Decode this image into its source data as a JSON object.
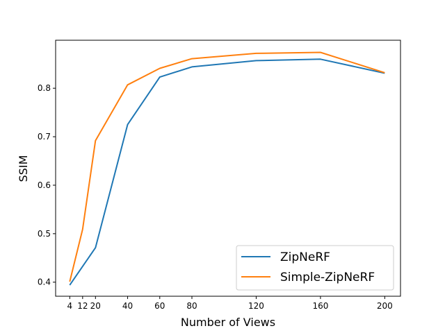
{
  "chart_data": {
    "type": "line",
    "title": "",
    "xlabel": "Number of Views",
    "ylabel": "SSIM",
    "x": [
      4,
      12,
      20,
      40,
      60,
      80,
      120,
      160,
      200
    ],
    "xticks": [
      "4",
      "12",
      "20",
      "40",
      "60",
      "80",
      "120",
      "160",
      "200"
    ],
    "yticks": [
      "0.4",
      "0.5",
      "0.6",
      "0.7",
      "0.8"
    ],
    "xlim": [
      -4.8,
      209.8
    ],
    "ylim": [
      0.371,
      0.899
    ],
    "grid": false,
    "legend_position": "lower-right",
    "series": [
      {
        "name": "ZipNeRF",
        "color": "#1f77b4",
        "values": [
          0.394,
          null,
          0.471,
          0.725,
          0.823,
          0.844,
          0.857,
          0.86,
          0.831
        ]
      },
      {
        "name": "Simple-ZipNeRF",
        "color": "#ff7f0e",
        "values": [
          0.401,
          0.509,
          0.692,
          0.807,
          0.841,
          0.861,
          0.872,
          0.874,
          0.832
        ]
      }
    ]
  }
}
